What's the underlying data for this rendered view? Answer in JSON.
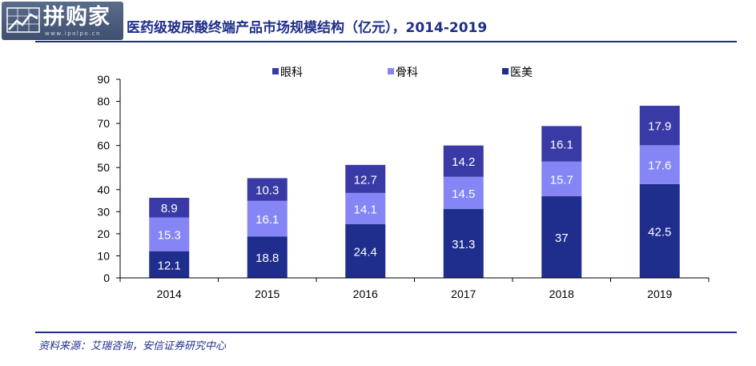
{
  "header": {
    "title": "医药级玻尿酸终端产品市场规模结构（亿元），2014-2019",
    "watermark_text": "拼购家",
    "watermark_url": "www.ipolpo.cn"
  },
  "footer": {
    "source": "资料来源：艾瑞咨询，安信证券研究中心"
  },
  "colors": {
    "rule": "#1f2e8a",
    "text": "#1f2e8a"
  },
  "chart_data": {
    "type": "bar",
    "stacked": true,
    "categories": [
      "2014",
      "2015",
      "2016",
      "2017",
      "2018",
      "2019"
    ],
    "series": [
      {
        "name": "医美",
        "values": [
          12.1,
          18.8,
          24.4,
          31.3,
          37,
          42.5
        ],
        "color": "#1f2d8c",
        "labels": [
          "12.1",
          "18.8",
          "24.4",
          "31.3",
          "37",
          "42.5"
        ]
      },
      {
        "name": "骨科",
        "values": [
          15.3,
          16.1,
          14.1,
          14.5,
          15.7,
          17.6
        ],
        "color": "#8585f5",
        "labels": [
          "15.3",
          "16.1",
          "14.1",
          "14.5",
          "15.7",
          "17.6"
        ]
      },
      {
        "name": "眼科",
        "values": [
          8.9,
          10.3,
          12.7,
          14.2,
          16.1,
          17.9
        ],
        "color": "#3a3aa6",
        "labels": [
          "8.9",
          "10.3",
          "12.7",
          "14.2",
          "16.1",
          "17.9"
        ]
      }
    ],
    "legend_order": [
      "眼科",
      "骨科",
      "医美"
    ],
    "legend_position": "top",
    "ylim": [
      0,
      90
    ],
    "yticks": [
      "0",
      "10",
      "20",
      "30",
      "40",
      "50",
      "60",
      "70",
      "80",
      "90"
    ],
    "grid": false
  }
}
